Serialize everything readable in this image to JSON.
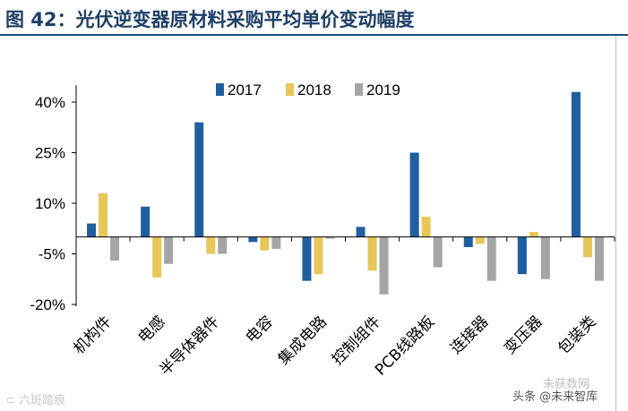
{
  "title": "图 42：光伏逆变器原材料采购平均单价变动幅度",
  "watermarks": {
    "bottom_left": "⊂ 六斑踏痕",
    "bottom_right_1": "未获数网",
    "bottom_right_2": "头条 @未来智库"
  },
  "colors": {
    "series_2017": "#1f5f9f",
    "series_2018": "#e8c65a",
    "series_2019": "#a5a5a5",
    "axis": "#000000",
    "title": "#1f3f66"
  },
  "chart_data": {
    "type": "bar",
    "title": "图 42：光伏逆变器原材料采购平均单价变动幅度",
    "xlabel": "",
    "ylabel": "",
    "ylim": [
      -20,
      45
    ],
    "yticks": [
      40,
      25,
      10,
      -5,
      -20
    ],
    "ytick_labels": [
      "40%",
      "25%",
      "10%",
      "-5%",
      "-20%"
    ],
    "grid": false,
    "legend_position": "top-center",
    "categories": [
      "机构件",
      "电感",
      "半导体器件",
      "电容",
      "集成电路",
      "控制组件",
      "PCB线路板",
      "连接器",
      "变压器",
      "包装类"
    ],
    "series": [
      {
        "name": "2017",
        "values": [
          4,
          9,
          34,
          -1.5,
          -13,
          3,
          25,
          -3,
          -11,
          43
        ]
      },
      {
        "name": "2018",
        "values": [
          13,
          -12,
          -5,
          -4,
          -11,
          -10,
          6,
          -2,
          1.5,
          -6
        ]
      },
      {
        "name": "2019",
        "values": [
          -7,
          -8,
          -5,
          -3.5,
          -0.5,
          -17,
          -9,
          -13,
          -12.5,
          -13
        ]
      }
    ]
  }
}
